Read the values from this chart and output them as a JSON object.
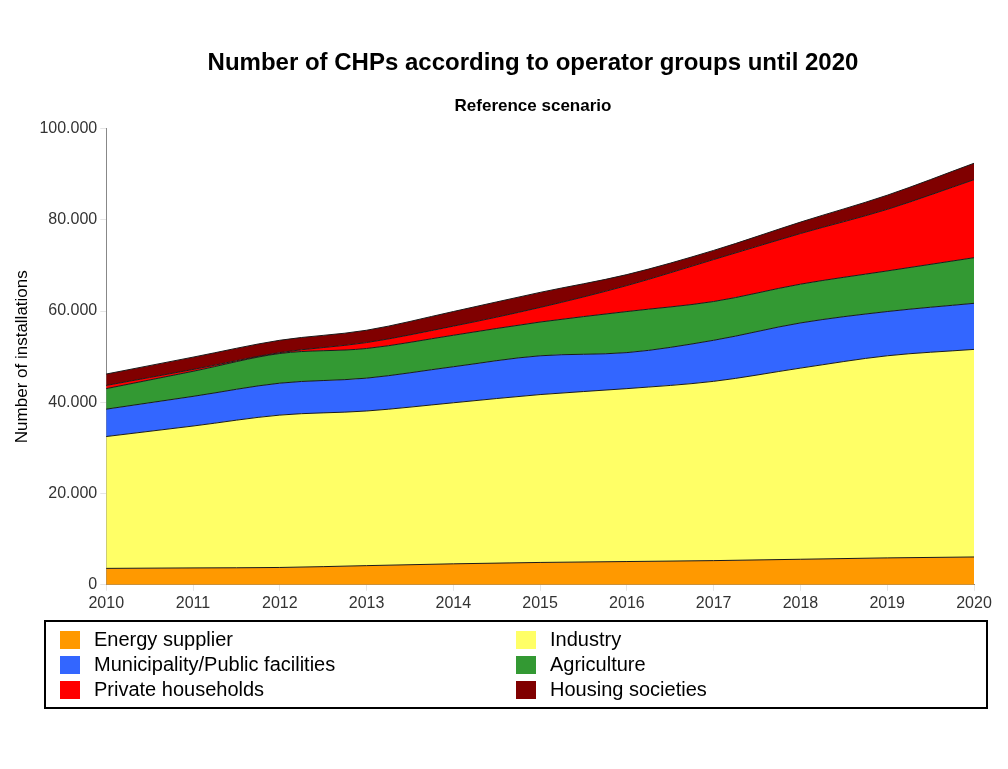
{
  "chart_data": {
    "type": "area",
    "title": "Number of CHPs according to operator groups until 2020",
    "subtitle": "Reference scenario",
    "ylabel": "Number of installations",
    "categories": [
      "2010",
      "2011",
      "2012",
      "2013",
      "2014",
      "2015",
      "2016",
      "2017",
      "2018",
      "2019",
      "2020"
    ],
    "stacked": true,
    "grid": false,
    "legend": "bottom",
    "ylim": [
      0,
      100000
    ],
    "yticks": [
      {
        "value": 0,
        "label": "0"
      },
      {
        "value": 20000,
        "label": "20.000"
      },
      {
        "value": 40000,
        "label": "40.000"
      },
      {
        "value": 60000,
        "label": "60.000"
      },
      {
        "value": 80000,
        "label": "80.000"
      },
      {
        "value": 100000,
        "label": "100.000"
      }
    ],
    "series": [
      {
        "name": "Energy supplier",
        "color": "#ff9900",
        "values": [
          3600,
          3700,
          3800,
          4200,
          4600,
          4900,
          5100,
          5300,
          5600,
          5900,
          6100
        ]
      },
      {
        "name": "Industry",
        "color": "#ffff66",
        "values": [
          28900,
          31100,
          33400,
          33900,
          35300,
          36800,
          37900,
          39300,
          41900,
          44300,
          45500
        ]
      },
      {
        "name": "Municipality/Public facilities",
        "color": "#3366ff",
        "values": [
          6000,
          6500,
          7000,
          7200,
          7900,
          8500,
          7900,
          9000,
          9900,
          9700,
          10100
        ]
      },
      {
        "name": "Agriculture",
        "color": "#339933",
        "values": [
          4500,
          5500,
          6500,
          6500,
          6900,
          7400,
          9000,
          8500,
          8500,
          8900,
          10000
        ]
      },
      {
        "name": "Private households",
        "color": "#ff0000",
        "values": [
          700,
          400,
          200,
          1300,
          2000,
          3200,
          5700,
          9200,
          11100,
          13500,
          17100
        ]
      },
      {
        "name": "Housing societies",
        "color": "#800000",
        "values": [
          2500,
          2700,
          2700,
          2700,
          3200,
          3300,
          2400,
          2000,
          2500,
          3100,
          3600
        ]
      }
    ]
  }
}
